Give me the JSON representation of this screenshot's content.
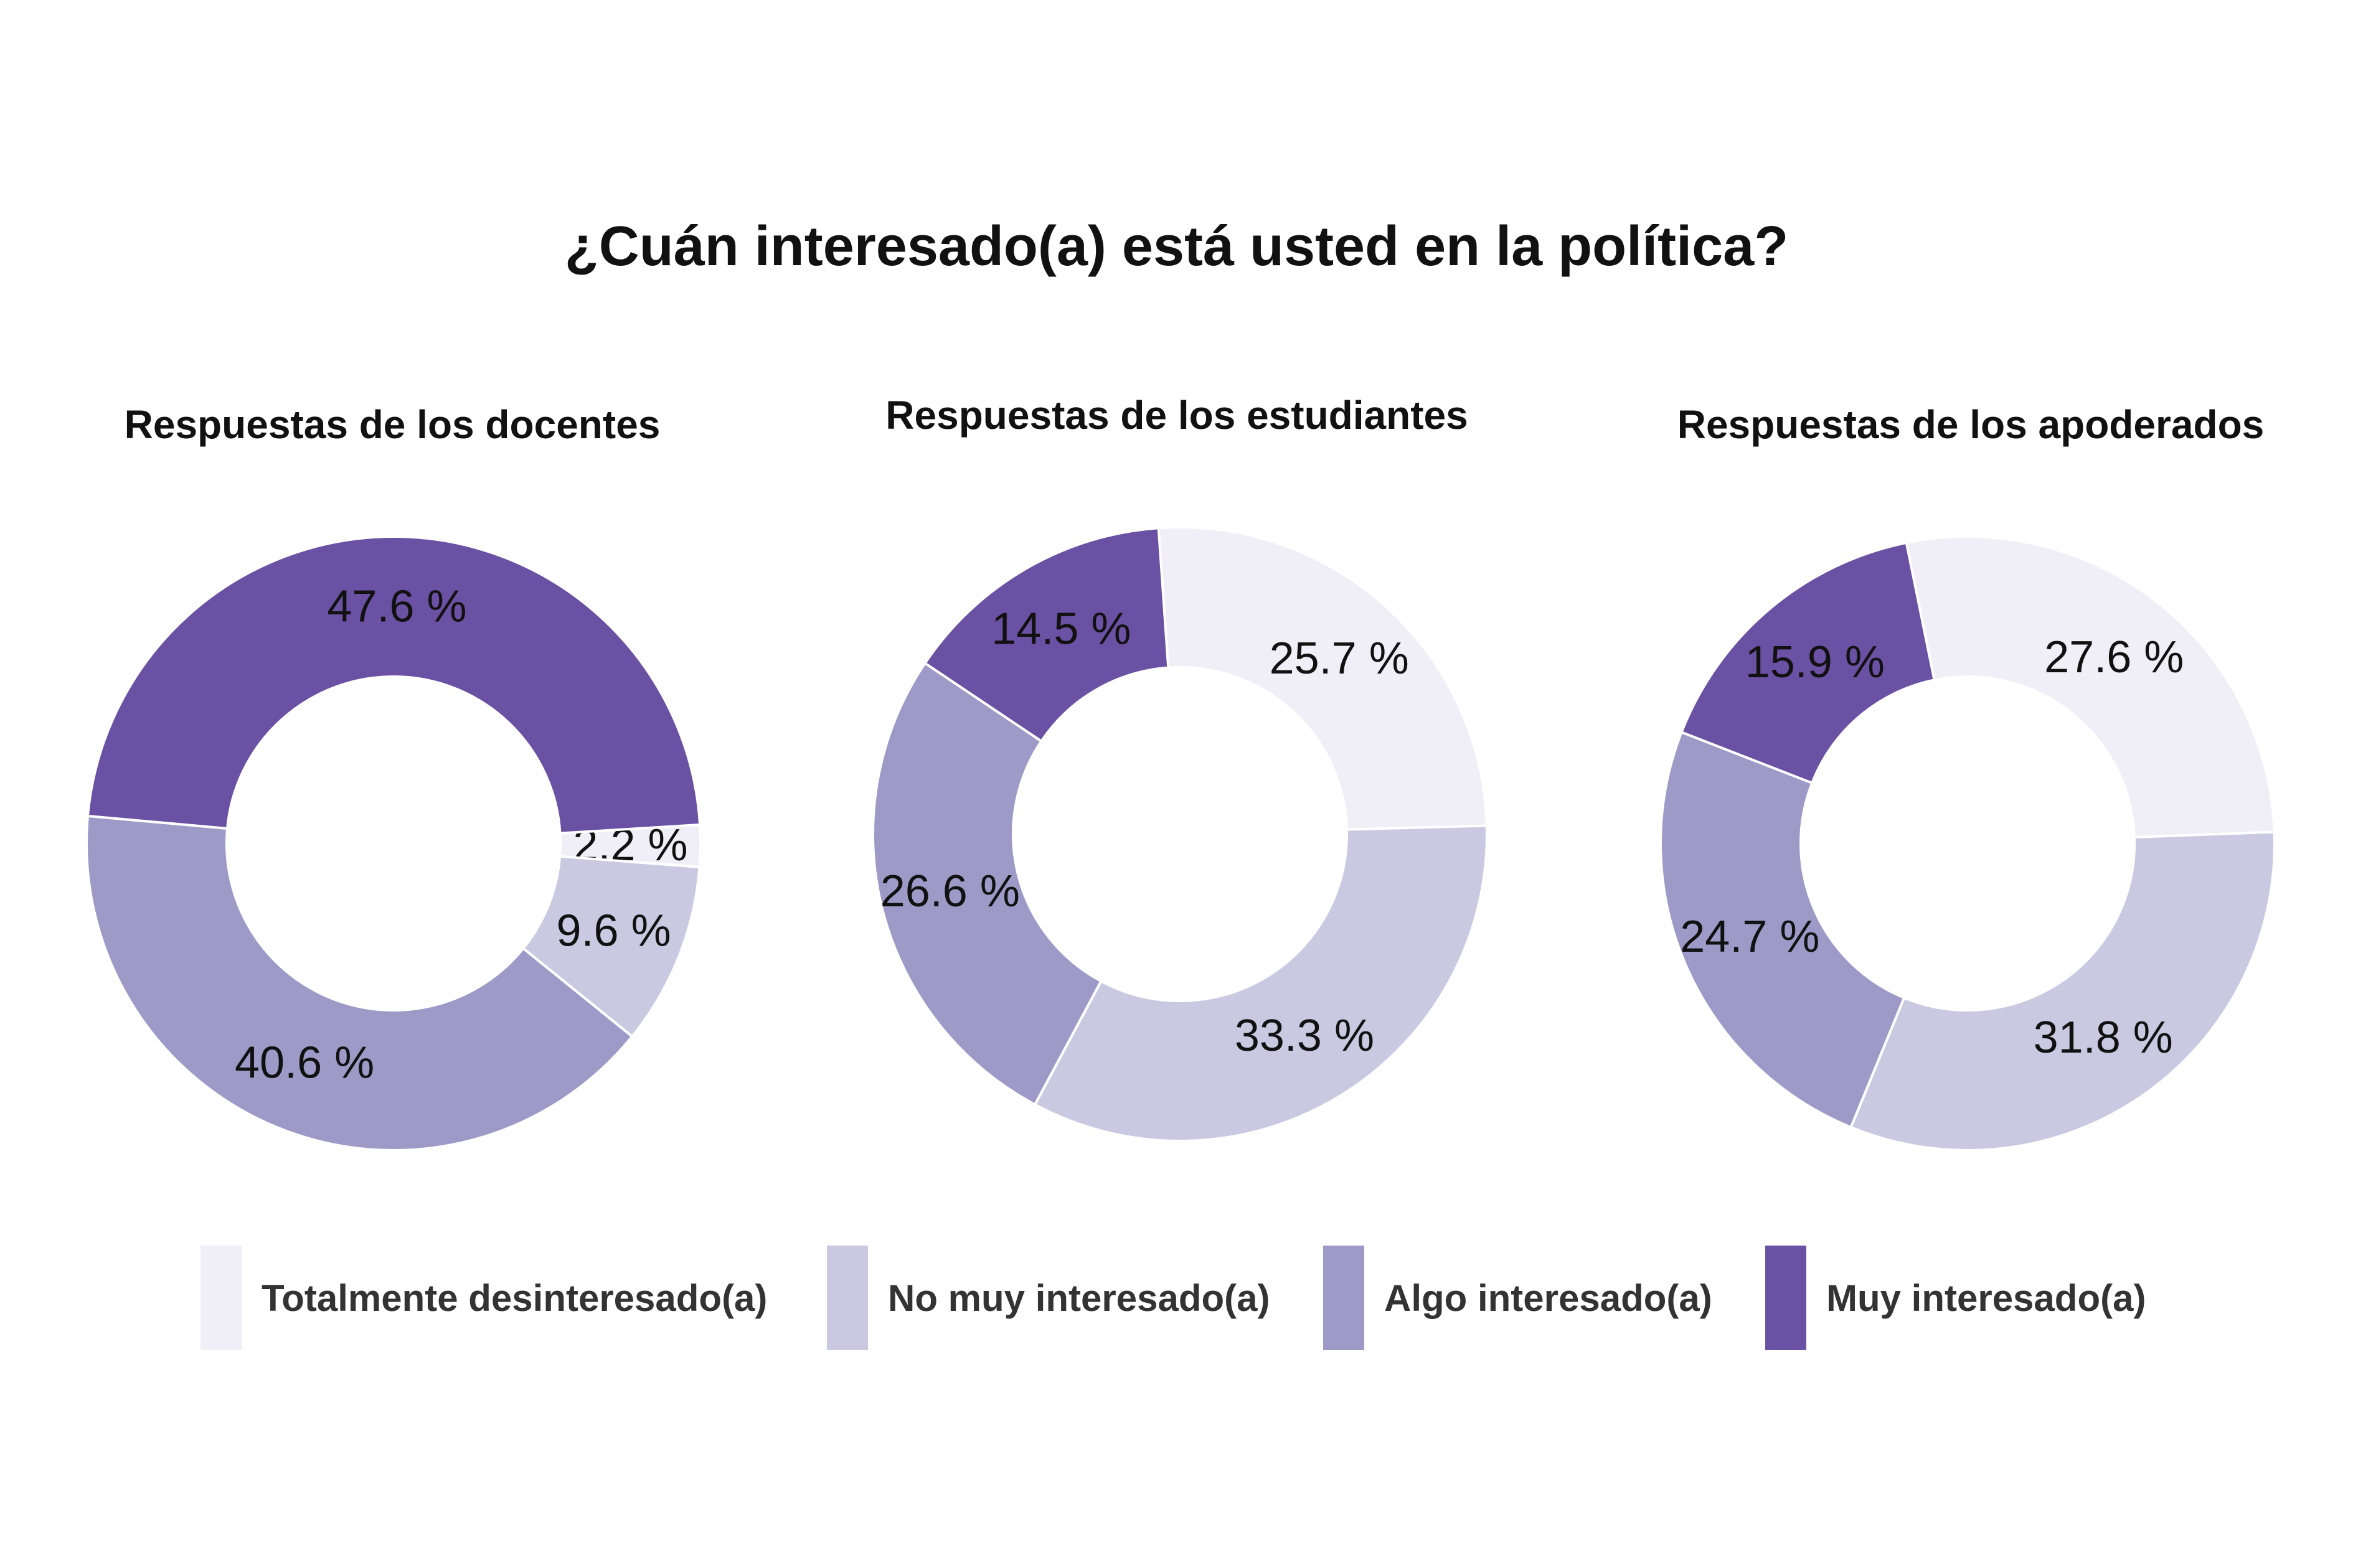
{
  "title": "¿Cuán interesado(a) está usted en la política?",
  "chart_data": {
    "type": "pie",
    "variant": "donut",
    "categories": [
      "Totalmente desinteresado(a)",
      "No muy interesado(a)",
      "Algo interesado(a)",
      "Muy interesado(a)"
    ],
    "colors": [
      "#f0eff7",
      "#cbc9e2",
      "#9e9ac8",
      "#6a51a3"
    ],
    "legend_position": "bottom",
    "label_suffix": " %",
    "charts": [
      {
        "title": "Respuestas de los docentes",
        "values": [
          2.2,
          9.6,
          40.6,
          47.6
        ]
      },
      {
        "title": "Respuestas de los estudiantes",
        "values": [
          25.7,
          33.3,
          26.6,
          14.5
        ]
      },
      {
        "title": "Respuestas de los apoderados",
        "values": [
          27.6,
          31.8,
          24.7,
          15.9
        ]
      }
    ]
  }
}
